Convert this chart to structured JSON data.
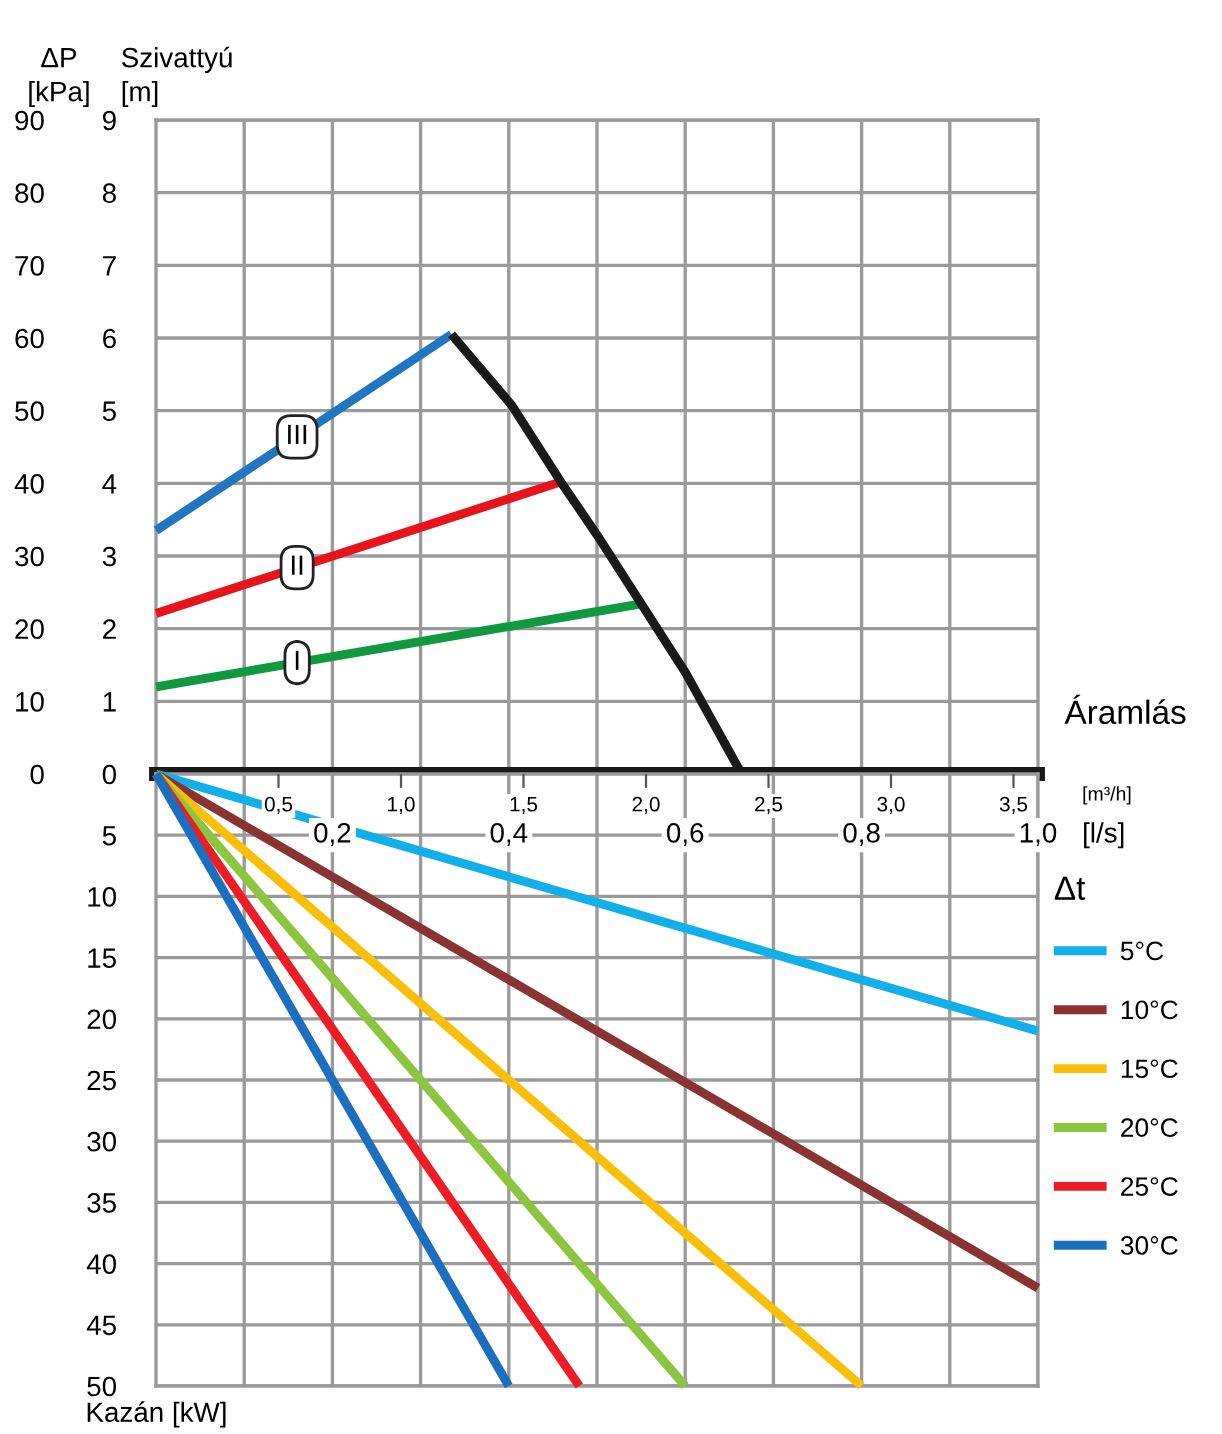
{
  "chart_data": [
    {
      "type": "line",
      "xlabel": "Áramlás",
      "ylabel": "Szivattyú\n[m]",
      "y2label": "ΔP\n[kPa]",
      "xlim": [
        0,
        1.0
      ],
      "xticks": [
        {
          "value": 0.1,
          "label": null
        },
        {
          "value": 0.2,
          "label": null
        },
        {
          "value": 0.3,
          "label": null
        },
        {
          "value": 0.4,
          "label": null
        },
        {
          "value": 0.5,
          "label": null
        },
        {
          "value": 0.6,
          "label": null
        },
        {
          "value": 0.7,
          "label": null
        },
        {
          "value": 0.8,
          "label": null
        },
        {
          "value": 0.9,
          "label": null
        }
      ],
      "ylim": [
        0,
        9
      ],
      "yticks": [
        0,
        1,
        2,
        3,
        4,
        5,
        6,
        7,
        8,
        9
      ],
      "y2lim": [
        0,
        90
      ],
      "y2ticks": [
        0,
        10,
        20,
        30,
        40,
        50,
        60,
        70,
        80,
        90
      ],
      "tick_labels": "y",
      "grid": true,
      "line_style": "solid",
      "marker": "none",
      "series": [
        {
          "name": "III",
          "color": "#1f77c4",
          "x": [
            0,
            0.335
          ],
          "values": [
            3.35,
            6.05
          ]
        },
        {
          "name": "II",
          "color": "#e8141c",
          "x": [
            0,
            0.459
          ],
          "values": [
            2.21,
            4.02
          ]
        },
        {
          "name": "I",
          "color": "#0f9a40",
          "x": [
            0,
            0.55
          ],
          "values": [
            1.2,
            2.34
          ]
        },
        {
          "color": "#1a1a1a",
          "x": [
            0.335,
            0.403,
            0.459,
            0.5,
            0.601,
            0.664
          ],
          "values": [
            6.05,
            5.08,
            4.02,
            3.29,
            1.38,
            0
          ]
        }
      ]
    },
    {
      "type": "line",
      "ylabel": "Kazán [kW]",
      "xlabel": "[l/s]",
      "x2label": "[m³/h]",
      "legend_title": "Δt",
      "legend": "right",
      "xlim": [
        0,
        1.0
      ],
      "xticks": [
        {
          "value": 0.1,
          "label": null
        },
        {
          "value": 0.2,
          "label": "0,2"
        },
        {
          "value": 0.3,
          "label": null
        },
        {
          "value": 0.4,
          "label": "0,4"
        },
        {
          "value": 0.5,
          "label": null
        },
        {
          "value": 0.6,
          "label": "0,6"
        },
        {
          "value": 0.7,
          "label": null
        },
        {
          "value": 0.8,
          "label": "0,8"
        },
        {
          "value": 0.9,
          "label": null
        },
        {
          "value": 1.0,
          "label": "1,0"
        }
      ],
      "x2lim": [
        0,
        3.6
      ],
      "x2ticks": [
        {
          "value": 0.5,
          "label": "0,5"
        },
        {
          "value": 1.0,
          "label": "1,0"
        },
        {
          "value": 1.5,
          "label": "1,5"
        },
        {
          "value": 2.0,
          "label": "2,0"
        },
        {
          "value": 2.5,
          "label": "2,5"
        },
        {
          "value": 3.0,
          "label": "3,0"
        },
        {
          "value": 3.5,
          "label": "3,5"
        }
      ],
      "ylim": [
        50,
        0
      ],
      "yticks": [
        5,
        10,
        15,
        20,
        25,
        30,
        35,
        40,
        45,
        50
      ],
      "grid": true,
      "line_style": "solid",
      "marker": "none",
      "series": [
        {
          "name": "5°C",
          "color": "#12b0ea",
          "x": [
            0,
            1.0
          ],
          "values": [
            0,
            21
          ]
        },
        {
          "name": "10°C",
          "color": "#8b3232",
          "x": [
            0,
            1.0
          ],
          "values": [
            0,
            42
          ]
        },
        {
          "name": "15°C",
          "color": "#fbbf0a",
          "x": [
            0,
            0.8
          ],
          "values": [
            0,
            50
          ]
        },
        {
          "name": "20°C",
          "color": "#8cc63f",
          "x": [
            0,
            0.6
          ],
          "values": [
            0,
            50
          ]
        },
        {
          "name": "25°C",
          "color": "#ee1c24",
          "x": [
            0,
            0.48
          ],
          "values": [
            0,
            50
          ]
        },
        {
          "name": "30°C",
          "color": "#1b6fc0",
          "x": [
            0,
            0.4
          ],
          "values": [
            0,
            50
          ]
        }
      ]
    }
  ]
}
